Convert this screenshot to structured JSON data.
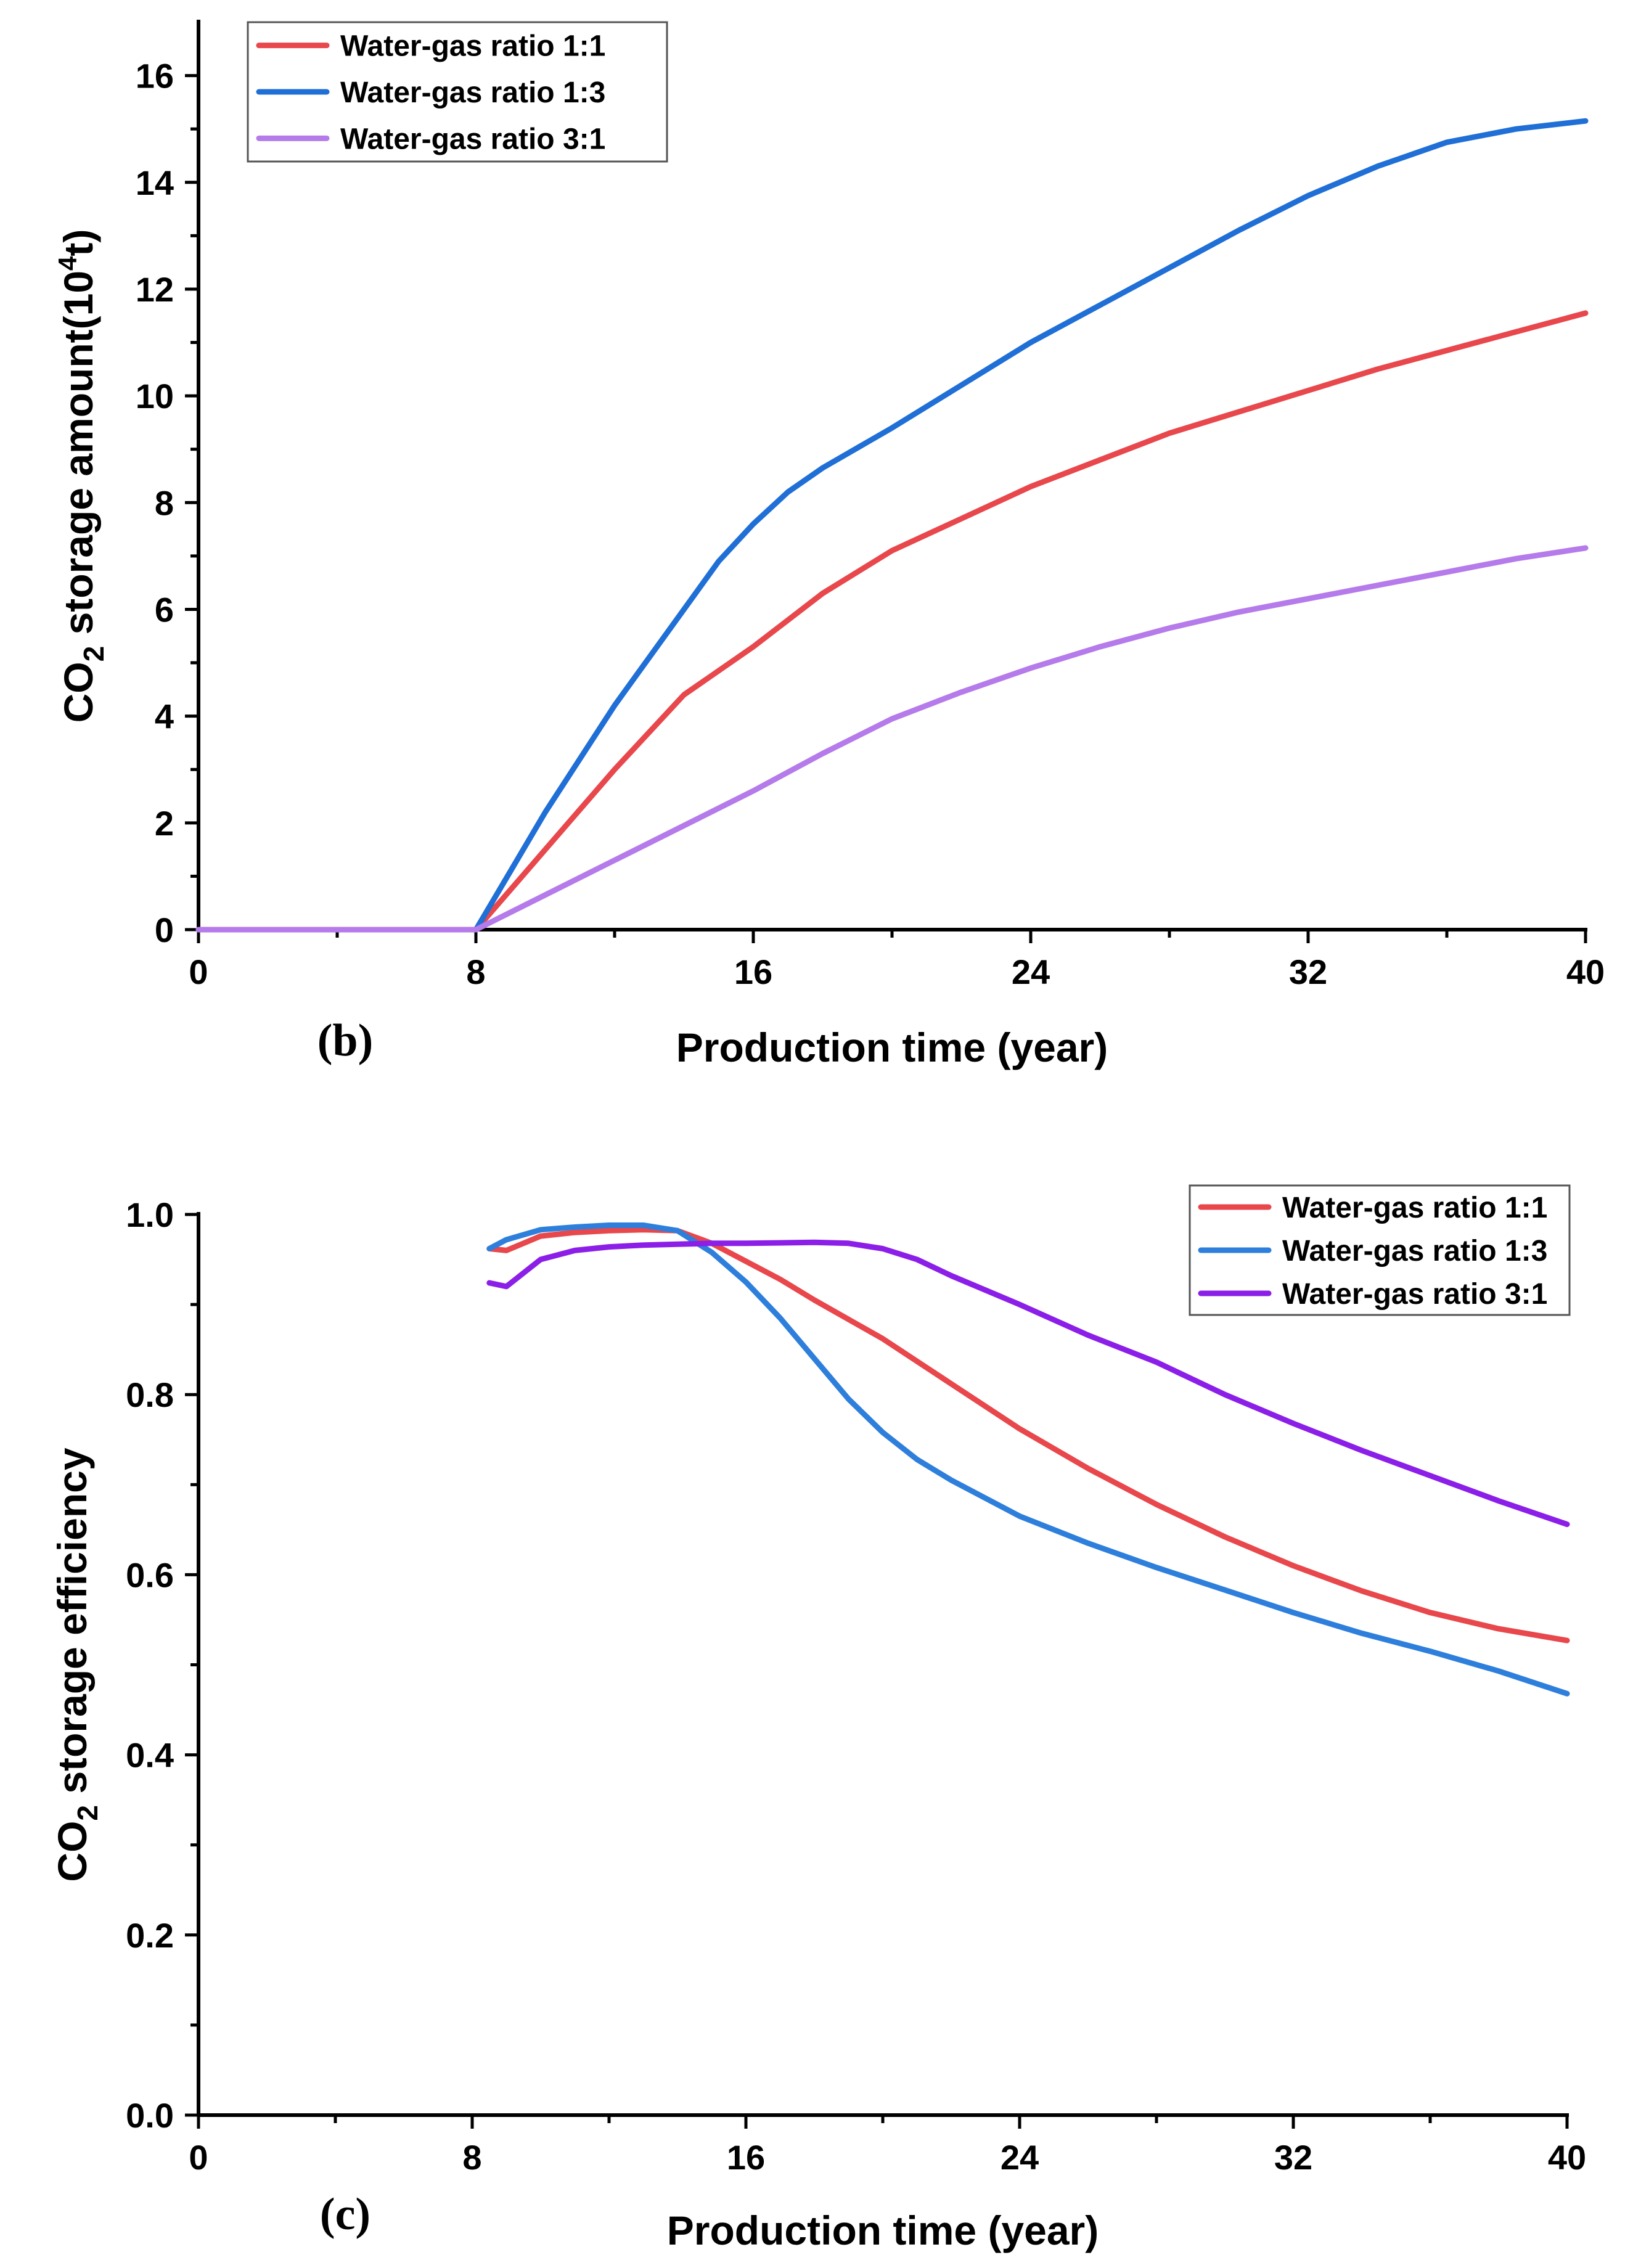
{
  "chart_data": [
    {
      "type": "line",
      "panel_label": "(b)",
      "xlabel": "Production time (year)",
      "ylabel_main": "CO",
      "ylabel_sub": "2",
      "ylabel_rest": " storage amount(10",
      "ylabel_sup": "4",
      "ylabel_end": "t)",
      "xlim": [
        0,
        40
      ],
      "ylim": [
        0,
        17
      ],
      "xticks": [
        "0",
        "8",
        "16",
        "24",
        "32",
        "40"
      ],
      "yticks": [
        "0",
        "2",
        "4",
        "6",
        "8",
        "10",
        "12",
        "14",
        "16"
      ],
      "legend_position": "top-left",
      "series": [
        {
          "name": "Water-gas ratio 1:1",
          "color": "#e8474c",
          "points": [
            [
              0,
              0
            ],
            [
              8,
              0
            ],
            [
              9,
              0.75
            ],
            [
              10,
              1.5
            ],
            [
              12,
              3.0
            ],
            [
              14,
              4.4
            ],
            [
              16,
              5.3
            ],
            [
              18,
              6.3
            ],
            [
              20,
              7.1
            ],
            [
              22,
              7.7
            ],
            [
              24,
              8.3
            ],
            [
              26,
              8.8
            ],
            [
              28,
              9.3
            ],
            [
              30,
              9.7
            ],
            [
              32,
              10.1
            ],
            [
              34,
              10.5
            ],
            [
              36,
              10.85
            ],
            [
              38,
              11.2
            ],
            [
              40,
              11.55
            ]
          ]
        },
        {
          "name": "Water-gas ratio 1:3",
          "color": "#1f6fd6",
          "points": [
            [
              0,
              0
            ],
            [
              8,
              0
            ],
            [
              9,
              1.1
            ],
            [
              10,
              2.2
            ],
            [
              12,
              4.2
            ],
            [
              14,
              6.0
            ],
            [
              15,
              6.9
            ],
            [
              16,
              7.6
            ],
            [
              17,
              8.2
            ],
            [
              18,
              8.65
            ],
            [
              20,
              9.4
            ],
            [
              22,
              10.2
            ],
            [
              24,
              11.0
            ],
            [
              26,
              11.7
            ],
            [
              28,
              12.4
            ],
            [
              30,
              13.1
            ],
            [
              32,
              13.75
            ],
            [
              34,
              14.3
            ],
            [
              36,
              14.75
            ],
            [
              38,
              15.0
            ],
            [
              40,
              15.15
            ]
          ]
        },
        {
          "name": "Water-gas ratio 3:1",
          "color": "#b57bea",
          "points": [
            [
              0,
              0
            ],
            [
              8,
              0
            ],
            [
              10,
              0.65
            ],
            [
              12,
              1.3
            ],
            [
              14,
              1.95
            ],
            [
              16,
              2.6
            ],
            [
              18,
              3.3
            ],
            [
              20,
              3.95
            ],
            [
              22,
              4.45
            ],
            [
              24,
              4.9
            ],
            [
              26,
              5.3
            ],
            [
              28,
              5.65
            ],
            [
              30,
              5.95
            ],
            [
              32,
              6.2
            ],
            [
              34,
              6.45
            ],
            [
              36,
              6.7
            ],
            [
              38,
              6.95
            ],
            [
              40,
              7.15
            ]
          ]
        }
      ]
    },
    {
      "type": "line",
      "panel_label": "(c)",
      "xlabel": "Production time (year)",
      "ylabel_main": "CO",
      "ylabel_sub": "2",
      "ylabel_rest": " storage efficiency",
      "ylabel_sup": "",
      "ylabel_end": "",
      "xlim": [
        0,
        40
      ],
      "ylim": [
        0,
        1.0
      ],
      "xticks": [
        "0",
        "8",
        "16",
        "24",
        "32",
        "40"
      ],
      "yticks": [
        "0.0",
        "0.2",
        "0.4",
        "0.6",
        "0.8",
        "1.0"
      ],
      "legend_position": "top-right",
      "series": [
        {
          "name": "Water-gas ratio 1:1",
          "color": "#e8474c",
          "points": [
            [
              8.5,
              0.962
            ],
            [
              9,
              0.96
            ],
            [
              10,
              0.976
            ],
            [
              11,
              0.98
            ],
            [
              12,
              0.982
            ],
            [
              13,
              0.983
            ],
            [
              14,
              0.982
            ],
            [
              15,
              0.968
            ],
            [
              16,
              0.948
            ],
            [
              17,
              0.928
            ],
            [
              18,
              0.905
            ],
            [
              20,
              0.862
            ],
            [
              22,
              0.812
            ],
            [
              24,
              0.762
            ],
            [
              26,
              0.718
            ],
            [
              28,
              0.678
            ],
            [
              30,
              0.642
            ],
            [
              32,
              0.61
            ],
            [
              34,
              0.582
            ],
            [
              36,
              0.558
            ],
            [
              38,
              0.54
            ],
            [
              40,
              0.527
            ]
          ]
        },
        {
          "name": "Water-gas ratio 1:3",
          "color": "#2e7fdc",
          "points": [
            [
              8.5,
              0.962
            ],
            [
              9,
              0.972
            ],
            [
              10,
              0.983
            ],
            [
              11,
              0.986
            ],
            [
              12,
              0.988
            ],
            [
              13,
              0.988
            ],
            [
              14,
              0.982
            ],
            [
              15,
              0.958
            ],
            [
              16,
              0.925
            ],
            [
              17,
              0.885
            ],
            [
              18,
              0.84
            ],
            [
              19,
              0.795
            ],
            [
              20,
              0.758
            ],
            [
              21,
              0.728
            ],
            [
              22,
              0.705
            ],
            [
              24,
              0.665
            ],
            [
              26,
              0.635
            ],
            [
              28,
              0.608
            ],
            [
              30,
              0.583
            ],
            [
              32,
              0.558
            ],
            [
              34,
              0.535
            ],
            [
              36,
              0.515
            ],
            [
              38,
              0.493
            ],
            [
              40,
              0.468
            ]
          ]
        },
        {
          "name": "Water-gas ratio 3:1",
          "color": "#8b1fe8",
          "points": [
            [
              8.5,
              0.924
            ],
            [
              9,
              0.92
            ],
            [
              10,
              0.95
            ],
            [
              11,
              0.96
            ],
            [
              12,
              0.964
            ],
            [
              13,
              0.966
            ],
            [
              14,
              0.967
            ],
            [
              15,
              0.968
            ],
            [
              16,
              0.968
            ],
            [
              18,
              0.969
            ],
            [
              19,
              0.968
            ],
            [
              20,
              0.962
            ],
            [
              21,
              0.95
            ],
            [
              22,
              0.932
            ],
            [
              24,
              0.9
            ],
            [
              26,
              0.866
            ],
            [
              28,
              0.836
            ],
            [
              30,
              0.8
            ],
            [
              32,
              0.768
            ],
            [
              34,
              0.738
            ],
            [
              36,
              0.71
            ],
            [
              38,
              0.682
            ],
            [
              40,
              0.656
            ]
          ]
        }
      ]
    }
  ]
}
